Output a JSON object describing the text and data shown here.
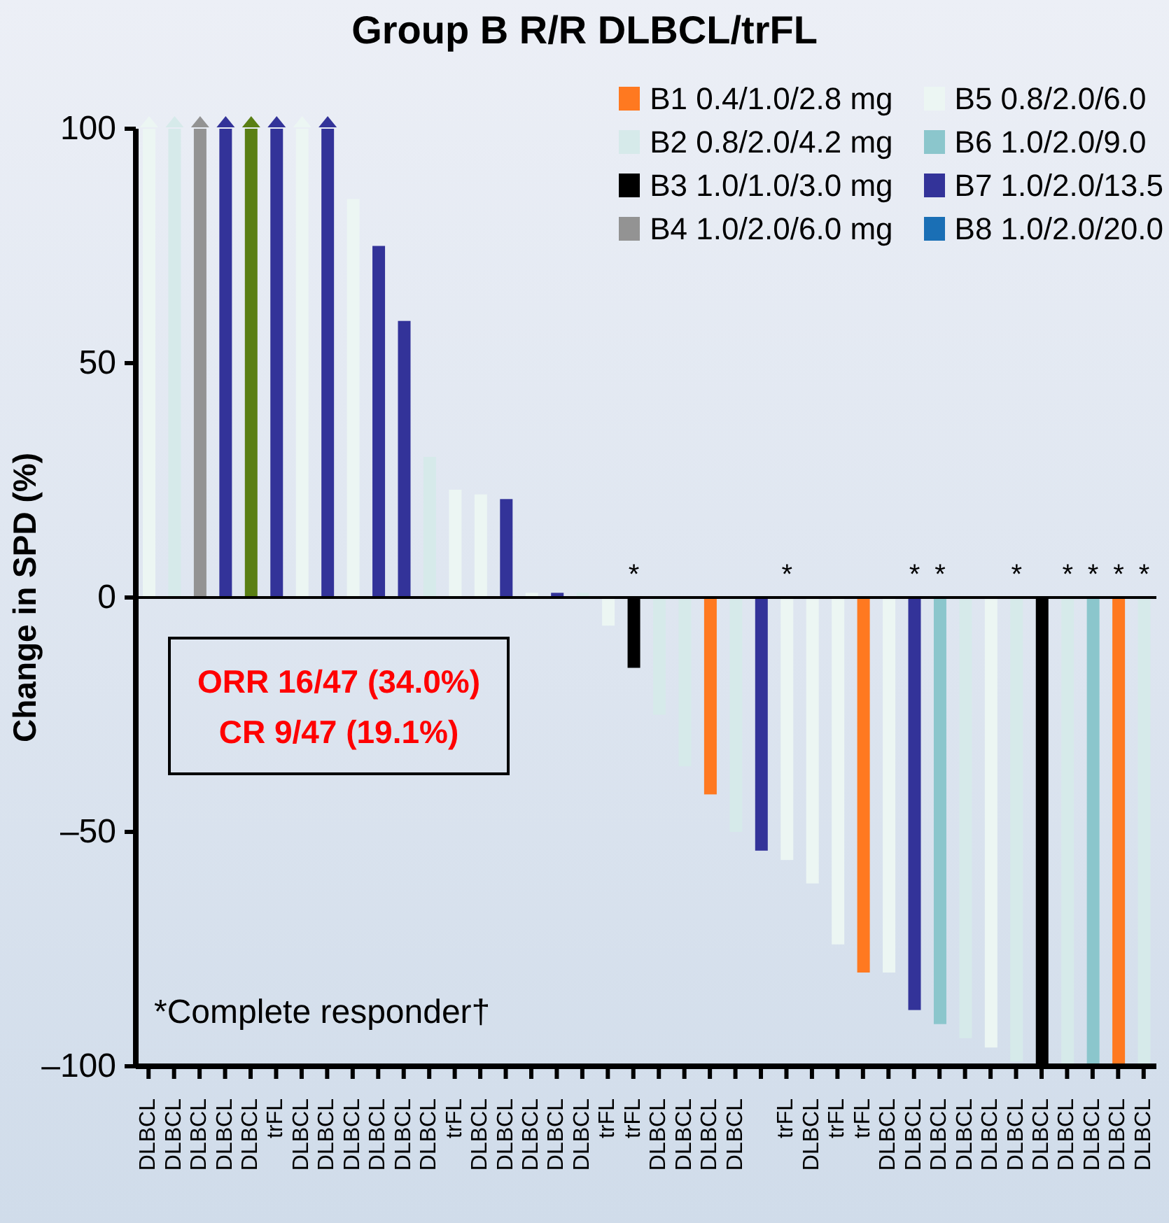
{
  "chart_data": {
    "type": "bar",
    "title": "Group B R/R DLBCL/trFL",
    "ylabel": "Change in SPD (%)",
    "stacked": true,
    "legend": "top right",
    "ylim": [
      -100,
      100
    ],
    "yticks": [
      {
        "value": -100,
        "label": "–100"
      },
      {
        "value": -50,
        "label": "–50"
      },
      0,
      50,
      100
    ],
    "categories": [
      "DLBCL",
      "DLBCL",
      "DLBCL",
      "DLBCL",
      "DLBCL",
      "trFL",
      "DLBCL",
      "DLBCL",
      "DLBCL",
      "DLBCL",
      "DLBCL",
      "DLBCL",
      "trFL",
      "DLBCL",
      "DLBCL",
      "DLBCL",
      "DLBCL",
      "DLBCL",
      "trFL",
      "trFL",
      "DLBCL",
      "DLBCL",
      "DLBCL",
      "DLBCL",
      null,
      "trFL",
      "DLBCL",
      "trFL",
      "trFL",
      "DLBCL",
      "DLBCL",
      "DLBCL",
      "DLBCL",
      "DLBCL",
      "DLBCL",
      "DLBCL",
      "DLBCL",
      "DLBCL",
      "DLBCL",
      "DLBCL"
    ],
    "series": [
      {
        "name": "B1 0.4/1.0/2.8 mg",
        "color": "#ff7920",
        "values": [
          null,
          null,
          null,
          null,
          null,
          null,
          null,
          null,
          null,
          null,
          null,
          null,
          null,
          null,
          null,
          null,
          null,
          null,
          null,
          null,
          null,
          null,
          -42,
          null,
          null,
          null,
          null,
          null,
          -80,
          null,
          null,
          null,
          null,
          null,
          null,
          null,
          null,
          null,
          -100,
          null
        ],
        "value_labels": [
          null,
          null,
          null,
          null,
          null,
          null,
          null,
          null,
          null,
          null,
          null,
          null,
          null,
          null,
          null,
          null,
          null,
          null,
          null,
          null,
          null,
          null,
          null,
          null,
          null,
          null,
          null,
          null,
          null,
          null,
          null,
          null,
          null,
          null,
          null,
          null,
          null,
          null,
          "*",
          null
        ]
      },
      {
        "name": "B2 0.8/2.0/4.2 mg",
        "color": "#d6eaea",
        "values": [
          null,
          100,
          null,
          null,
          null,
          null,
          null,
          null,
          null,
          null,
          null,
          30,
          null,
          null,
          null,
          null,
          null,
          1,
          null,
          null,
          -25,
          -36,
          null,
          -50,
          null,
          null,
          null,
          null,
          null,
          null,
          null,
          null,
          -94,
          null,
          -99,
          null,
          -100,
          null,
          null,
          -100
        ],
        "value_labels": [
          null,
          null,
          null,
          null,
          null,
          null,
          null,
          null,
          null,
          null,
          null,
          null,
          null,
          null,
          null,
          null,
          null,
          null,
          null,
          null,
          null,
          null,
          null,
          null,
          null,
          null,
          null,
          null,
          null,
          null,
          null,
          null,
          null,
          null,
          "*",
          null,
          "*",
          null,
          null,
          "*"
        ]
      },
      {
        "name": "B3 1.0/1.0/3.0 mg",
        "color": "#000000",
        "values": [
          null,
          null,
          null,
          null,
          null,
          null,
          null,
          null,
          null,
          null,
          null,
          null,
          null,
          null,
          null,
          null,
          null,
          null,
          null,
          -15,
          null,
          null,
          null,
          null,
          null,
          null,
          null,
          null,
          null,
          null,
          null,
          null,
          null,
          null,
          null,
          -100,
          null,
          null,
          null,
          null
        ],
        "value_labels": [
          null,
          null,
          null,
          null,
          null,
          null,
          null,
          null,
          null,
          null,
          null,
          null,
          null,
          null,
          null,
          null,
          null,
          null,
          null,
          "*",
          null,
          null,
          null,
          null,
          null,
          null,
          null,
          null,
          null,
          null,
          null,
          null,
          null,
          null,
          null,
          null,
          null,
          null,
          null,
          null
        ]
      },
      {
        "name": "B4 1.0/2.0/6.0 mg",
        "color": "#939393",
        "values": [
          null,
          null,
          100,
          null,
          null,
          null,
          null,
          null,
          null,
          null,
          null,
          null,
          null,
          null,
          null,
          null,
          null,
          null,
          null,
          null,
          null,
          null,
          null,
          null,
          null,
          null,
          null,
          null,
          null,
          null,
          null,
          null,
          null,
          null,
          null,
          null,
          null,
          null,
          null,
          null
        ]
      },
      {
        "name": "B5 0.8/2.0/6.0",
        "color": "#ecf6f3",
        "values": [
          100,
          null,
          null,
          null,
          null,
          null,
          100,
          null,
          85,
          null,
          null,
          null,
          23,
          22,
          null,
          1,
          null,
          null,
          -6,
          null,
          null,
          null,
          null,
          null,
          null,
          -56,
          -61,
          -74,
          null,
          -80,
          null,
          null,
          null,
          -96,
          null,
          null,
          null,
          null,
          null,
          null
        ],
        "value_labels": [
          null,
          null,
          null,
          null,
          null,
          null,
          null,
          null,
          null,
          null,
          null,
          null,
          null,
          null,
          null,
          null,
          null,
          null,
          null,
          null,
          null,
          null,
          null,
          null,
          null,
          "*",
          null,
          null,
          null,
          null,
          null,
          null,
          null,
          null,
          null,
          null,
          null,
          null,
          null,
          null
        ]
      },
      {
        "name": "B6 1.0/2.0/9.0",
        "color": "#8bc6cc",
        "values": [
          null,
          null,
          null,
          null,
          null,
          null,
          null,
          null,
          null,
          null,
          null,
          null,
          null,
          null,
          null,
          null,
          null,
          null,
          null,
          null,
          null,
          null,
          null,
          null,
          null,
          null,
          null,
          null,
          null,
          null,
          null,
          -91,
          null,
          null,
          null,
          null,
          null,
          -100,
          null,
          null
        ],
        "value_labels": [
          null,
          null,
          null,
          null,
          null,
          null,
          null,
          null,
          null,
          null,
          null,
          null,
          null,
          null,
          null,
          null,
          null,
          null,
          null,
          null,
          null,
          null,
          null,
          null,
          null,
          null,
          null,
          null,
          null,
          null,
          null,
          "*",
          null,
          null,
          null,
          null,
          null,
          "*",
          null,
          null
        ]
      },
      {
        "name": "B7 1.0/2.0/13.5",
        "color": "#333399",
        "values": [
          null,
          null,
          null,
          100,
          null,
          100,
          null,
          100,
          null,
          75,
          59,
          null,
          null,
          null,
          21,
          null,
          1,
          null,
          null,
          null,
          null,
          null,
          null,
          null,
          -54,
          null,
          null,
          null,
          null,
          null,
          -88,
          null,
          null,
          null,
          null,
          null,
          null,
          null,
          null,
          null
        ],
        "value_labels": [
          null,
          null,
          null,
          null,
          null,
          null,
          null,
          null,
          null,
          null,
          null,
          null,
          null,
          null,
          null,
          null,
          null,
          null,
          null,
          null,
          null,
          null,
          null,
          null,
          null,
          null,
          null,
          null,
          null,
          null,
          "*",
          null,
          null,
          null,
          null,
          null,
          null,
          null,
          null,
          null
        ]
      },
      {
        "name": "B8 1.0/2.0/20.0",
        "color": "#1a6fb5",
        "values": [
          null,
          null,
          null,
          null,
          null,
          null,
          null,
          null,
          null,
          null,
          null,
          null,
          null,
          null,
          null,
          null,
          null,
          null,
          null,
          null,
          null,
          null,
          null,
          null,
          null,
          null,
          null,
          null,
          null,
          null,
          null,
          null,
          null,
          null,
          null,
          null,
          null,
          null,
          null,
          null
        ]
      },
      {
        "color": "#5a7f14",
        "values": [
          null,
          null,
          null,
          null,
          100,
          null,
          null,
          null,
          null,
          null,
          null,
          null,
          null,
          null,
          null,
          null,
          null,
          null,
          null,
          null,
          null,
          null,
          null,
          null,
          null,
          null,
          null,
          null,
          null,
          null,
          null,
          null,
          null,
          null,
          null,
          null,
          null,
          null,
          null,
          null
        ]
      }
    ],
    "annotations": [
      "ORR 16/47 (34.0%)",
      "CR 9/47 (19.1%)",
      "*Complete responder†"
    ]
  }
}
